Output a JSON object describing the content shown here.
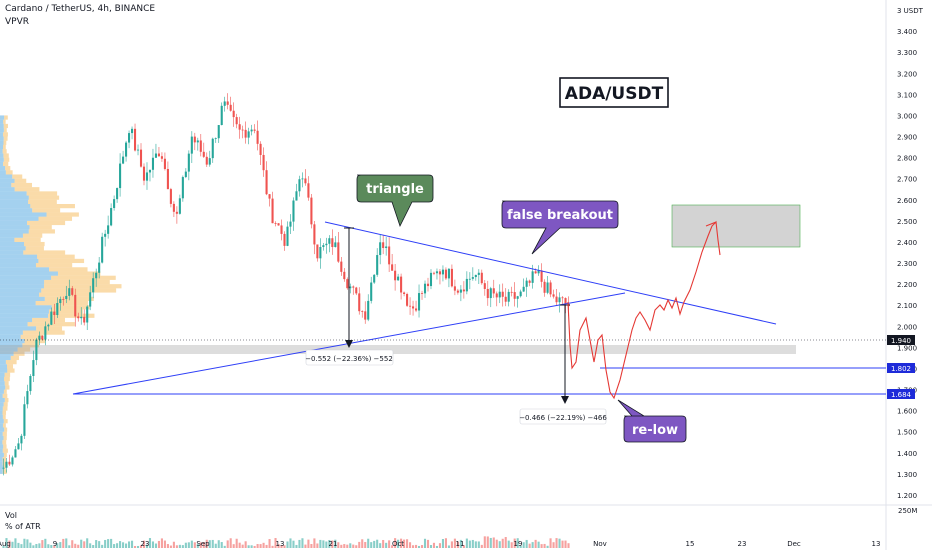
{
  "header": {
    "title": "Cardano / TetherUS, 4h, BINANCE",
    "indicator": "VPVR"
  },
  "volume_pane": {
    "label": "Vol",
    "sublabel": "% of ATR",
    "scale_label": "250M"
  },
  "chart_data": {
    "type": "candlestick",
    "symbol": "ADA/USDT",
    "y_unit": "USDT",
    "ylim": [
      1.2,
      3.5
    ],
    "y_ticks": [
      "3 USDT",
      "3.400",
      "3.300",
      "3.200",
      "3.100",
      "3.000",
      "2.900",
      "2.800",
      "2.700",
      "2.600",
      "2.500",
      "2.400",
      "2.300",
      "2.200",
      "2.100",
      "2.000",
      "1.900",
      "1.800",
      "1.700",
      "1.600",
      "1.500",
      "1.400",
      "1.300",
      "1.200"
    ],
    "x_ticks": [
      "Aug",
      "9",
      "23",
      "Sep",
      "13",
      "21",
      "Oct",
      "11",
      "19",
      "Nov",
      "15",
      "23",
      "Dec",
      "13"
    ],
    "price_labels": [
      {
        "value": "1.940",
        "style": "current"
      },
      {
        "value": "1.802",
        "style": "level"
      },
      {
        "value": "1.684",
        "style": "level"
      }
    ],
    "price_path": [
      [
        "Aug",
        1.33
      ],
      [
        "9",
        1.45
      ],
      [
        "9",
        1.9
      ],
      [
        "9",
        2.05
      ],
      [
        "9",
        2.18
      ],
      [
        "9",
        2.0
      ],
      [
        "23",
        2.3
      ],
      [
        "23",
        2.6
      ],
      [
        "23",
        2.95
      ],
      [
        "23",
        2.7
      ],
      [
        "23",
        2.85
      ],
      [
        "23",
        2.5
      ],
      [
        "Sep",
        2.9
      ],
      [
        "Sep",
        2.78
      ],
      [
        "Sep",
        3.05
      ],
      [
        "Sep",
        2.92
      ],
      [
        "Sep",
        2.95
      ],
      [
        "Sep",
        2.55
      ],
      [
        "13",
        2.4
      ],
      [
        "13",
        2.75
      ],
      [
        "13",
        2.35
      ],
      [
        "13",
        2.4
      ],
      [
        "21",
        2.2
      ],
      [
        "21",
        2.05
      ],
      [
        "21",
        2.42
      ],
      [
        "21",
        2.25
      ],
      [
        "21",
        2.08
      ],
      [
        "Oct",
        2.2
      ],
      [
        "Oct",
        2.28
      ],
      [
        "Oct",
        2.18
      ],
      [
        "11",
        2.25
      ],
      [
        "11",
        2.15
      ],
      [
        "11",
        2.12
      ],
      [
        "19",
        2.15
      ],
      [
        "19",
        2.25
      ],
      [
        "19",
        2.13
      ],
      [
        "19",
        2.1
      ]
    ],
    "projection": {
      "color": "#e53935",
      "description_hidden": true
    },
    "annotations": {
      "pair_label": "ADA/USDT",
      "triangle": "triangle",
      "false_breakout": "false breakout",
      "re_low": "re-low",
      "measure_1": "−0.552 (−22.36%) −552",
      "measure_2": "−0.466 (−22.19%) −466"
    },
    "colors": {
      "up": "#26a69a",
      "down": "#ef5350",
      "trendline": "#2e3ff7",
      "triangle_box": "#5b8a5b",
      "breakout_box": "#7e57c2",
      "relow_box": "#7e57c2",
      "vpvr_up": "#4aa3df",
      "vpvr_down": "#f5b041"
    }
  }
}
